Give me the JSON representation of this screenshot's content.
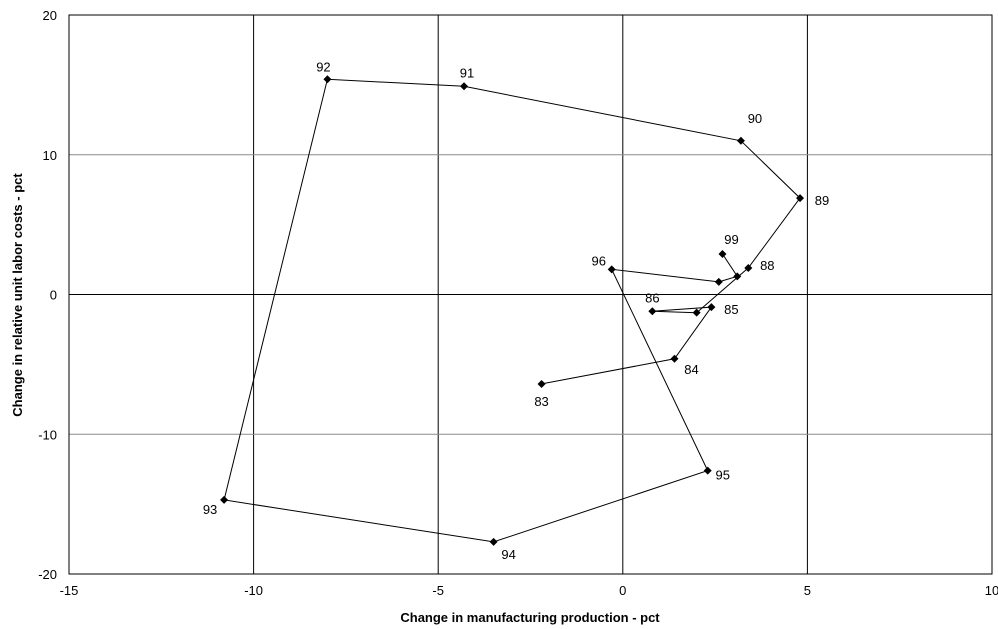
{
  "chart_data": {
    "type": "scatter",
    "title": "",
    "xlabel": "Change in manufacturing production - pct",
    "ylabel": "Change in relative unit labor costs - pct",
    "xlim": [
      -15,
      10
    ],
    "ylim": [
      -20,
      20
    ],
    "x_ticks": [
      -15,
      -10,
      -5,
      0,
      5,
      10
    ],
    "y_ticks": [
      -20,
      -10,
      0,
      10,
      20
    ],
    "x_tick_labels": [
      "-15",
      "-10",
      "-5",
      "0",
      "5",
      "10"
    ],
    "y_tick_labels": [
      "-20",
      "-10",
      "0",
      "10",
      "20"
    ],
    "grid": true,
    "connected": true,
    "points": [
      {
        "label": "83",
        "x": -2.2,
        "y": -6.4
      },
      {
        "label": "84",
        "x": 1.4,
        "y": -4.6
      },
      {
        "label": "85",
        "x": 2.4,
        "y": -0.9
      },
      {
        "label": "86",
        "x": 0.8,
        "y": -1.2
      },
      {
        "label": "",
        "x": 2.0,
        "y": -1.3
      },
      {
        "label": "88",
        "x": 3.4,
        "y": 1.9
      },
      {
        "label": "89",
        "x": 4.8,
        "y": 6.9
      },
      {
        "label": "90",
        "x": 3.2,
        "y": 11.0
      },
      {
        "label": "91",
        "x": -4.3,
        "y": 14.9
      },
      {
        "label": "92",
        "x": -8.0,
        "y": 15.4
      },
      {
        "label": "93",
        "x": -10.8,
        "y": -14.7
      },
      {
        "label": "94",
        "x": -3.5,
        "y": -17.7
      },
      {
        "label": "95",
        "x": 2.3,
        "y": -12.6
      },
      {
        "label": "96",
        "x": -0.3,
        "y": 1.8
      },
      {
        "label": "",
        "x": 2.6,
        "y": 0.9
      },
      {
        "label": "",
        "x": 3.1,
        "y": 1.3
      },
      {
        "label": "99",
        "x": 2.7,
        "y": 2.9
      }
    ]
  }
}
